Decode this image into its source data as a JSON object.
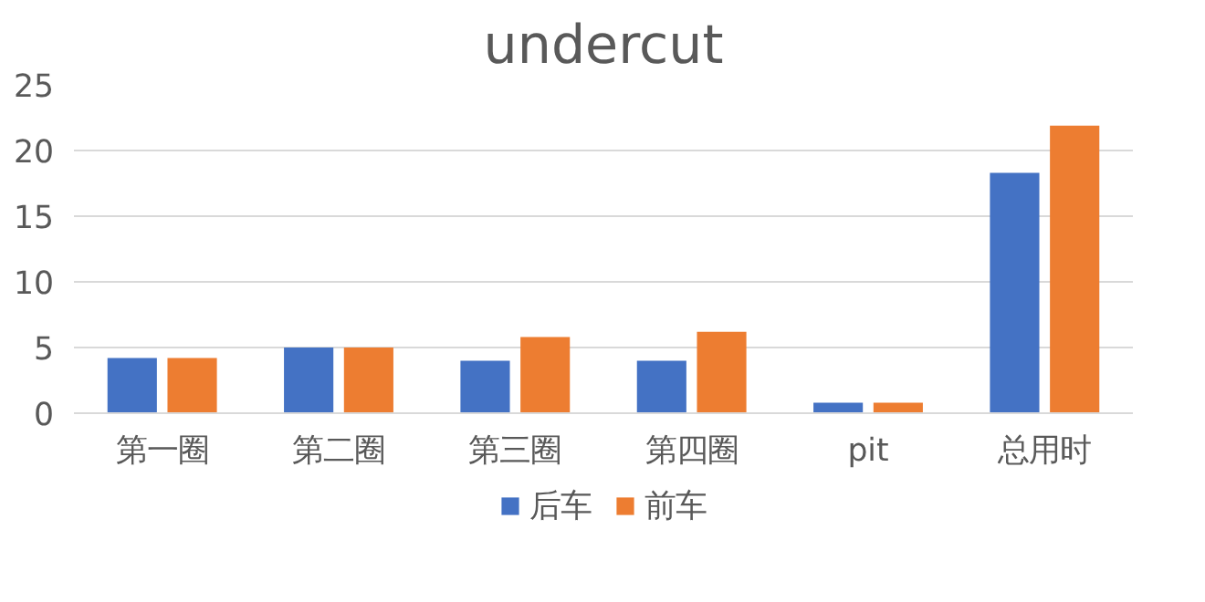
{
  "chart_data": {
    "type": "bar",
    "title": "undercut",
    "categories": [
      "第一圈",
      "第二圈",
      "第三圈",
      "第四圈",
      "pit",
      "总用时"
    ],
    "series": [
      {
        "name": "后车",
        "color": "#4472c4",
        "values": [
          4.2,
          5.0,
          4.0,
          4.0,
          0.8,
          18.3
        ]
      },
      {
        "name": "前车",
        "color": "#ed7d31",
        "values": [
          4.2,
          5.0,
          5.8,
          6.2,
          0.8,
          21.9
        ]
      }
    ],
    "ylim": [
      0,
      25
    ],
    "yticks": [
      0,
      5,
      10,
      15,
      20,
      25
    ],
    "grid": "y",
    "legend": "bottom"
  }
}
